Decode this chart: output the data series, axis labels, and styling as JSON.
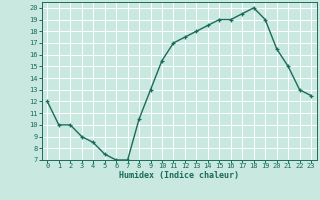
{
  "x": [
    0,
    1,
    2,
    3,
    4,
    5,
    6,
    7,
    8,
    9,
    10,
    11,
    12,
    13,
    14,
    15,
    16,
    17,
    18,
    19,
    20,
    21,
    22,
    23
  ],
  "y": [
    12,
    10,
    10,
    9,
    8.5,
    7.5,
    7,
    7,
    10.5,
    13,
    15.5,
    17,
    17.5,
    18,
    18.5,
    19,
    19,
    19.5,
    20,
    19,
    16.5,
    15,
    13,
    12.5
  ],
  "line_color": "#1a6b5a",
  "bg_color": "#c8e8e0",
  "grid_color": "#ffffff",
  "tick_label_color": "#1a6b5a",
  "xlabel": "Humidex (Indice chaleur)",
  "ylim": [
    7,
    20.5
  ],
  "xlim": [
    -0.5,
    23.5
  ],
  "yticks": [
    7,
    8,
    9,
    10,
    11,
    12,
    13,
    14,
    15,
    16,
    17,
    18,
    19,
    20
  ],
  "xticks": [
    0,
    1,
    2,
    3,
    4,
    5,
    6,
    7,
    8,
    9,
    10,
    11,
    12,
    13,
    14,
    15,
    16,
    17,
    18,
    19,
    20,
    21,
    22,
    23
  ],
  "tick_fontsize": 5.0,
  "xlabel_fontsize": 6.0
}
